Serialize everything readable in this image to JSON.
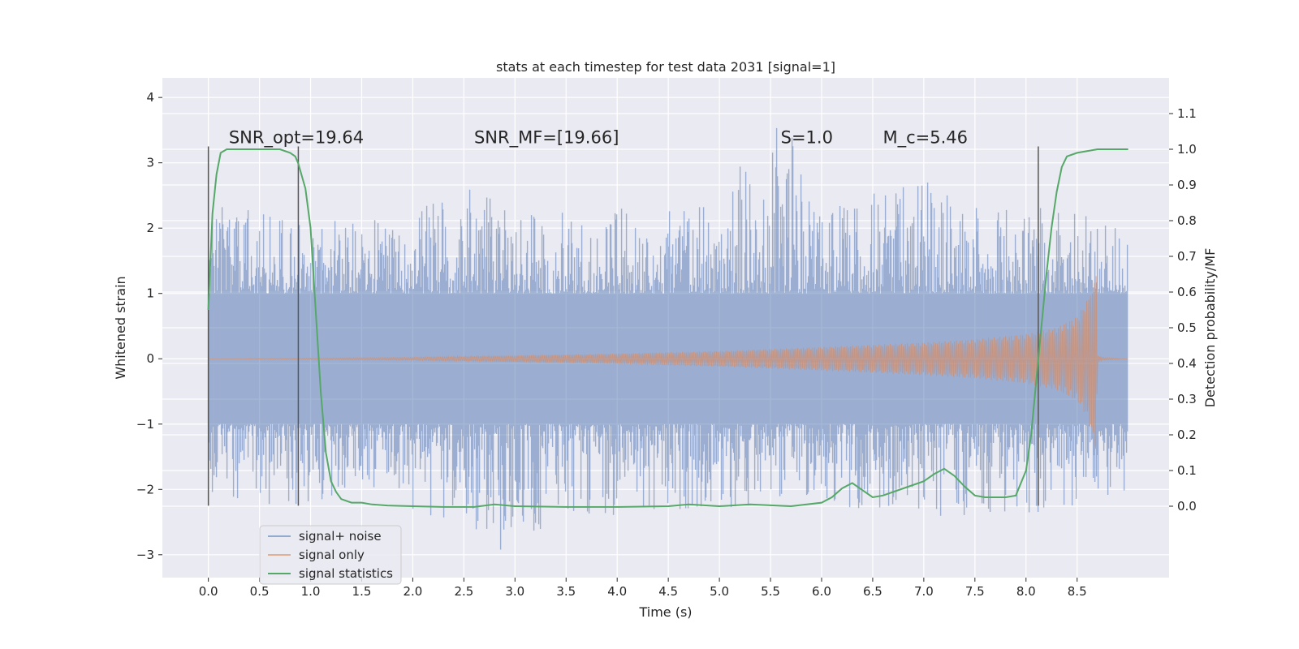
{
  "chart_data": {
    "type": "line",
    "title": "stats at each timestep for test data 2031 [signal=1]",
    "xlabel": "Time (s)",
    "ylabel": "Whitened strain",
    "y2label": "Detection probability/MF",
    "xlim": [
      -0.45,
      9.4
    ],
    "ylim": [
      -3.35,
      4.3
    ],
    "y2lim": [
      -0.2,
      1.2
    ],
    "x_ticks": [
      0.0,
      0.5,
      1.0,
      1.5,
      2.0,
      2.5,
      3.0,
      3.5,
      4.0,
      4.5,
      5.0,
      5.5,
      6.0,
      6.5,
      7.0,
      7.5,
      8.0,
      8.5
    ],
    "x_tick_labels": [
      "0.0",
      "0.5",
      "1.0",
      "1.5",
      "2.0",
      "2.5",
      "3.0",
      "3.5",
      "4.0",
      "4.5",
      "5.0",
      "5.5",
      "6.0",
      "6.5",
      "7.0",
      "7.5",
      "8.0",
      "8.5"
    ],
    "y_ticks": [
      -3,
      -2,
      -1,
      0,
      1,
      2,
      3,
      4
    ],
    "y_tick_labels": [
      "−3",
      "−2",
      "−1",
      "0",
      "1",
      "2",
      "3",
      "4"
    ],
    "y2_ticks": [
      0.0,
      0.1,
      0.2,
      0.3,
      0.4,
      0.5,
      0.6,
      0.7,
      0.8,
      0.9,
      1.0,
      1.1
    ],
    "y2_tick_labels": [
      "0.0",
      "0.1",
      "0.2",
      "0.3",
      "0.4",
      "0.5",
      "0.6",
      "0.7",
      "0.8",
      "0.9",
      "1.0",
      "1.1"
    ],
    "grid": true,
    "legend_position": "lower-left",
    "colors": {
      "background": "#eaeaf2",
      "grid": "#ffffff",
      "noise": "#4c72b0",
      "signal": "#dd8452",
      "stat": "#55a868",
      "vline": "#555555"
    },
    "annotations": [
      {
        "text": "SNR_opt=19.64",
        "x": 0.2,
        "y": 3.3
      },
      {
        "text": "SNR_MF=[19.66]",
        "x": 2.6,
        "y": 3.3
      },
      {
        "text": "S=1.0",
        "x": 5.6,
        "y": 3.3
      },
      {
        "text": "M_c=5.46",
        "x": 6.6,
        "y": 3.3
      }
    ],
    "vertical_lines": [
      {
        "x": 0.0,
        "ymin": -2.25,
        "ymax": 3.25
      },
      {
        "x": 0.88,
        "ymin": -2.25,
        "ymax": 3.25
      },
      {
        "x": 8.12,
        "ymin": -2.25,
        "ymax": 3.25
      }
    ],
    "series": [
      {
        "name": "signal+ noise",
        "kind": "noise",
        "x_range": [
          0.0,
          9.0
        ],
        "envelope_upper": [
          [
            0.0,
            2.4
          ],
          [
            0.5,
            2.3
          ],
          [
            1.0,
            2.1
          ],
          [
            2.0,
            2.2
          ],
          [
            2.5,
            2.8
          ],
          [
            3.0,
            2.3
          ],
          [
            4.0,
            2.3
          ],
          [
            5.0,
            2.4
          ],
          [
            5.6,
            4.0
          ],
          [
            6.0,
            2.3
          ],
          [
            6.9,
            2.8
          ],
          [
            7.5,
            2.4
          ],
          [
            8.5,
            2.3
          ],
          [
            9.0,
            2.0
          ]
        ],
        "envelope_lower": [
          [
            0.0,
            -2.2
          ],
          [
            0.9,
            -2.3
          ],
          [
            1.5,
            -2.0
          ],
          [
            2.5,
            -2.6
          ],
          [
            2.8,
            -3.0
          ],
          [
            3.5,
            -2.4
          ],
          [
            4.5,
            -2.4
          ],
          [
            5.5,
            -2.3
          ],
          [
            6.5,
            -2.3
          ],
          [
            7.2,
            -2.5
          ],
          [
            8.0,
            -2.5
          ],
          [
            9.0,
            -2.0
          ]
        ]
      },
      {
        "name": "signal only",
        "kind": "chirp",
        "amplitude": [
          [
            0.0,
            0.0
          ],
          [
            2.0,
            0.02
          ],
          [
            3.0,
            0.05
          ],
          [
            4.0,
            0.08
          ],
          [
            5.0,
            0.12
          ],
          [
            6.0,
            0.18
          ],
          [
            7.0,
            0.25
          ],
          [
            7.5,
            0.3
          ],
          [
            8.0,
            0.38
          ],
          [
            8.3,
            0.48
          ],
          [
            8.5,
            0.65
          ],
          [
            8.6,
            0.9
          ],
          [
            8.65,
            1.2
          ],
          [
            8.69,
            1.4
          ],
          [
            8.7,
            0.05
          ],
          [
            8.75,
            0.02
          ],
          [
            9.0,
            0.0
          ]
        ]
      },
      {
        "name": "signal statistics",
        "kind": "probability",
        "x": [
          0.0,
          0.04,
          0.08,
          0.12,
          0.18,
          0.25,
          0.35,
          0.5,
          0.6,
          0.7,
          0.8,
          0.85,
          0.88,
          0.95,
          1.0,
          1.05,
          1.1,
          1.15,
          1.2,
          1.25,
          1.3,
          1.4,
          1.5,
          1.6,
          1.75,
          2.0,
          2.3,
          2.6,
          2.8,
          3.0,
          3.5,
          4.0,
          4.5,
          4.7,
          5.0,
          5.3,
          5.7,
          6.0,
          6.1,
          6.2,
          6.3,
          6.4,
          6.5,
          6.6,
          6.8,
          7.0,
          7.1,
          7.2,
          7.3,
          7.4,
          7.5,
          7.6,
          7.8,
          7.9,
          8.0,
          8.05,
          8.1,
          8.15,
          8.2,
          8.25,
          8.3,
          8.35,
          8.4,
          8.5,
          8.7,
          9.0
        ],
        "y": [
          0.55,
          0.82,
          0.93,
          0.99,
          1.0,
          1.0,
          1.0,
          1.0,
          1.0,
          1.0,
          0.99,
          0.98,
          0.96,
          0.89,
          0.78,
          0.55,
          0.32,
          0.15,
          0.07,
          0.04,
          0.02,
          0.01,
          0.01,
          0.005,
          0.002,
          0.0,
          -0.002,
          -0.002,
          0.005,
          0.0,
          -0.002,
          -0.002,
          0.0,
          0.005,
          0.0,
          0.005,
          0.0,
          0.01,
          0.025,
          0.05,
          0.065,
          0.045,
          0.025,
          0.03,
          0.05,
          0.07,
          0.09,
          0.105,
          0.085,
          0.055,
          0.03,
          0.025,
          0.025,
          0.03,
          0.1,
          0.2,
          0.35,
          0.5,
          0.65,
          0.78,
          0.88,
          0.95,
          0.98,
          0.99,
          1.0,
          1.0
        ]
      }
    ]
  }
}
